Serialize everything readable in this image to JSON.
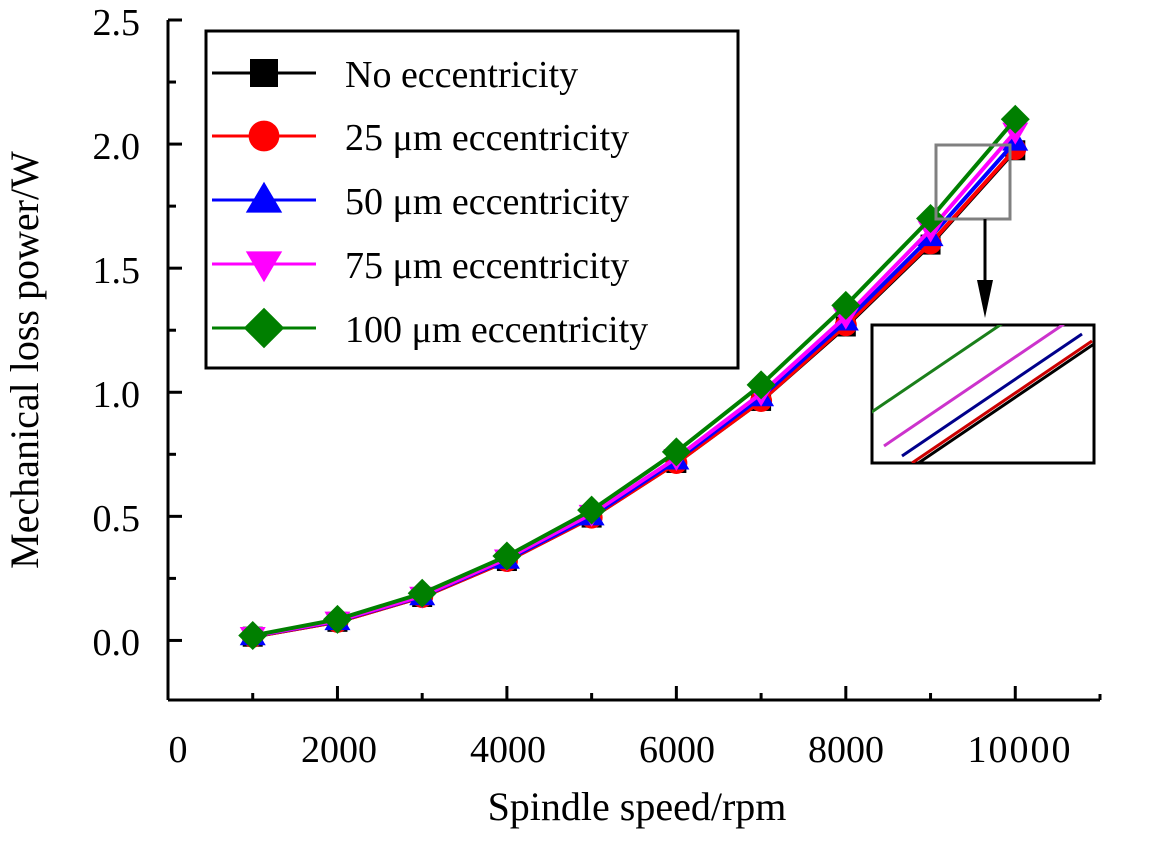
{
  "chart_data": {
    "type": "line",
    "title": "",
    "xlabel": "Spindle speed/rpm",
    "ylabel": "Mechanical loss power/W",
    "xlim": [
      0,
      11000
    ],
    "ylim": [
      -0.24,
      2.5
    ],
    "x_ticks": [
      0,
      2000,
      4000,
      6000,
      8000,
      10000
    ],
    "x_tick_labels": [
      "0",
      "2000",
      "4000",
      "6000",
      "8000",
      "10000"
    ],
    "y_ticks": [
      0.0,
      0.5,
      1.0,
      1.5,
      2.0,
      2.5
    ],
    "y_tick_labels": [
      "0.0",
      "0.5",
      "1.0",
      "1.5",
      "2.0",
      "2.5"
    ],
    "grid": false,
    "legend_position": "top-left",
    "x": [
      1000,
      2000,
      3000,
      4000,
      5000,
      6000,
      7000,
      8000,
      9000,
      10000
    ],
    "series": [
      {
        "name": "No eccentricity",
        "color": "#000000",
        "marker": "square",
        "values": [
          0.015,
          0.075,
          0.175,
          0.32,
          0.495,
          0.715,
          0.965,
          1.265,
          1.595,
          1.975
        ]
      },
      {
        "name": "25 μm eccentricity",
        "color": "#ff0000",
        "marker": "circle",
        "values": [
          0.015,
          0.075,
          0.175,
          0.32,
          0.495,
          0.715,
          0.965,
          1.27,
          1.6,
          1.98
        ]
      },
      {
        "name": "50 μm eccentricity",
        "color": "#0000ff",
        "marker": "triangle-up",
        "values": [
          0.017,
          0.078,
          0.178,
          0.325,
          0.5,
          0.725,
          0.98,
          1.285,
          1.625,
          2.01
        ]
      },
      {
        "name": "75 μm eccentricity",
        "color": "#ff00ff",
        "marker": "triangle-down",
        "values": [
          0.018,
          0.08,
          0.18,
          0.33,
          0.51,
          0.735,
          0.995,
          1.305,
          1.655,
          2.05
        ]
      },
      {
        "name": "100 μm eccentricity",
        "color": "#007f00",
        "marker": "diamond",
        "values": [
          0.02,
          0.085,
          0.19,
          0.34,
          0.525,
          0.76,
          1.03,
          1.35,
          1.7,
          2.1
        ]
      }
    ],
    "annotations": [
      {
        "type": "zoom-inset",
        "description": "Magnified view of region near 9000–10000 rpm showing line separation",
        "source_x_range": [
          9100,
          10000
        ],
        "source_y_range": [
          1.7,
          2.0
        ]
      }
    ]
  }
}
